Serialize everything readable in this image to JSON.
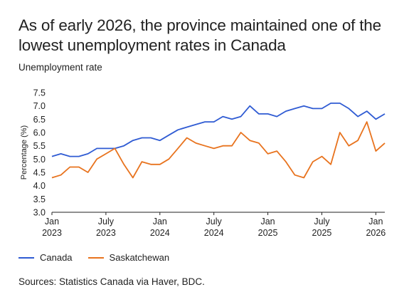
{
  "title": "As of early 2026, the province maintained one of the lowest unemployment rates in Canada",
  "subtitle": "Unemployment rate",
  "source": "Sources: Statistics Canada via Haver, BDC.",
  "colors": {
    "canada": "#2f5bd3",
    "saskatchewan": "#e8731e",
    "axis": "#222222"
  },
  "chart_data": {
    "type": "line",
    "ylabel": "Percentage (%)",
    "ylim": [
      3.0,
      7.5
    ],
    "yticks": [
      "3.0",
      "3.5",
      "4.0",
      "4.5",
      "5.0",
      "5.5",
      "6.0",
      "6.5",
      "7.0",
      "7.5"
    ],
    "x": [
      "2023-01",
      "2023-02",
      "2023-03",
      "2023-04",
      "2023-05",
      "2023-06",
      "2023-07",
      "2023-08",
      "2023-09",
      "2023-10",
      "2023-11",
      "2023-12",
      "2024-01",
      "2024-02",
      "2024-03",
      "2024-04",
      "2024-05",
      "2024-06",
      "2024-07",
      "2024-08",
      "2024-09",
      "2024-10",
      "2024-11",
      "2024-12",
      "2025-01",
      "2025-02",
      "2025-03",
      "2025-04",
      "2025-05",
      "2025-06",
      "2025-07",
      "2025-08",
      "2025-09",
      "2025-10",
      "2025-11",
      "2025-12",
      "2026-01",
      "2026-02"
    ],
    "xticks": [
      {
        "month": "Jan",
        "year": "2023",
        "x": "2023-01"
      },
      {
        "month": "July",
        "year": "2023",
        "x": "2023-07"
      },
      {
        "month": "Jan",
        "year": "2024",
        "x": "2024-01"
      },
      {
        "month": "July",
        "year": "2024",
        "x": "2024-07"
      },
      {
        "month": "Jan",
        "year": "2025",
        "x": "2025-01"
      },
      {
        "month": "July",
        "year": "2025",
        "x": "2025-07"
      },
      {
        "month": "Jan",
        "year": "2026",
        "x": "2026-01"
      }
    ],
    "series": [
      {
        "name": "Canada",
        "color": "#2f5bd3",
        "values": [
          5.1,
          5.2,
          5.1,
          5.1,
          5.2,
          5.4,
          5.4,
          5.4,
          5.5,
          5.7,
          5.8,
          5.8,
          5.7,
          5.9,
          6.1,
          6.2,
          6.3,
          6.4,
          6.4,
          6.6,
          6.5,
          6.6,
          7.0,
          6.7,
          6.7,
          6.6,
          6.8,
          6.9,
          7.0,
          6.9,
          6.9,
          7.1,
          7.1,
          6.9,
          6.6,
          6.8,
          6.5,
          6.7
        ]
      },
      {
        "name": "Saskatchewan",
        "color": "#e8731e",
        "values": [
          4.3,
          4.4,
          4.7,
          4.7,
          4.5,
          5.0,
          5.2,
          5.4,
          4.8,
          4.3,
          4.9,
          4.8,
          4.8,
          5.0,
          5.4,
          5.8,
          5.6,
          5.5,
          5.4,
          5.5,
          5.5,
          6.0,
          5.7,
          5.6,
          5.2,
          5.3,
          4.9,
          4.4,
          4.3,
          4.9,
          5.1,
          4.8,
          6.0,
          5.5,
          5.7,
          6.4,
          5.3,
          5.6
        ]
      }
    ],
    "legend_position": "bottom-left"
  }
}
